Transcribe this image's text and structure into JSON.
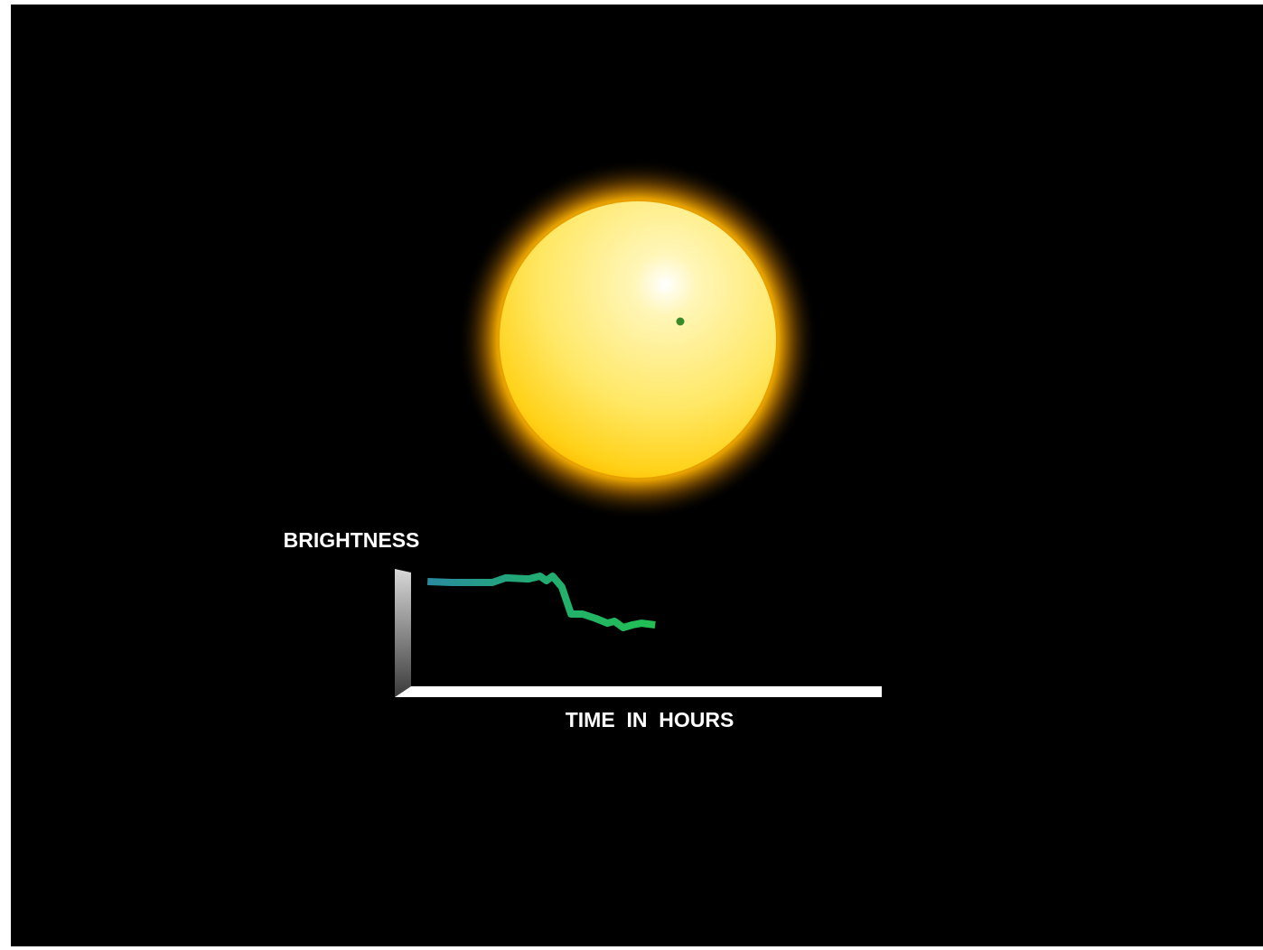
{
  "chart_data": {
    "type": "line",
    "y_label": "BRIGHTNESS",
    "x_label": "TIME  IN  HOURS",
    "x": [
      6.2,
      11.2,
      19.6,
      22.4,
      27.1,
      29.5,
      30.8,
      32.1,
      34.0,
      35.9,
      38.3,
      41.1,
      43.4,
      44.9,
      46.7,
      48.6,
      50.5,
      53.3
    ],
    "series": [
      {
        "color": "#22c052",
        "values": [
          90,
          89.3,
          89.3,
          92.9,
          92.1,
          94.3,
          90.7,
          94.3,
          85.7,
          64.3,
          64.3,
          60.7,
          57.1,
          58.6,
          53.6,
          55.7,
          57.1,
          55.7
        ]
      }
    ],
    "xlim": [
      0,
      100
    ],
    "ylim": [
      0,
      100
    ]
  }
}
